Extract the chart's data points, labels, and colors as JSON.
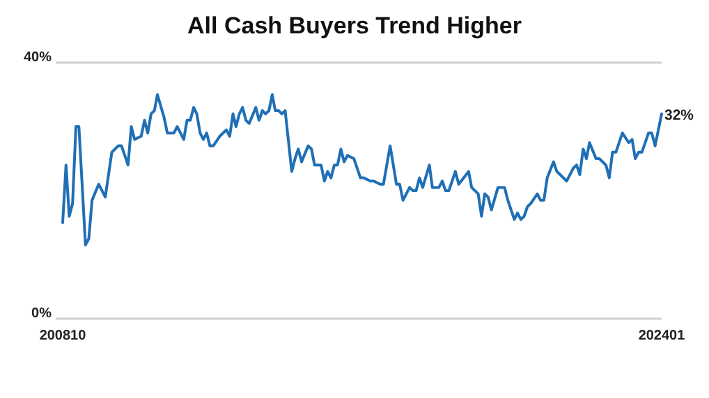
{
  "chart_data": {
    "type": "line",
    "title": "All Cash Buyers Trend Higher",
    "x": [
      "2008-10",
      "2008-11",
      "2008-12",
      "2009-01",
      "2009-02",
      "2009-03",
      "2009-05",
      "2009-06",
      "2009-07",
      "2009-09",
      "2009-11",
      "2010-01",
      "2010-03",
      "2010-04",
      "2010-06",
      "2010-07",
      "2010-08",
      "2010-10",
      "2010-11",
      "2010-12",
      "2011-01",
      "2011-02",
      "2011-03",
      "2011-05",
      "2011-06",
      "2011-08",
      "2011-09",
      "2011-11",
      "2011-12",
      "2012-01",
      "2012-02",
      "2012-03",
      "2012-04",
      "2012-05",
      "2012-06",
      "2012-07",
      "2012-08",
      "2012-10",
      "2012-12",
      "2013-01",
      "2013-02",
      "2013-03",
      "2013-04",
      "2013-05",
      "2013-06",
      "2013-07",
      "2013-09",
      "2013-10",
      "2013-11",
      "2013-12",
      "2014-01",
      "2014-02",
      "2014-03",
      "2014-04",
      "2014-05",
      "2014-06",
      "2014-08",
      "2014-09",
      "2014-10",
      "2014-11",
      "2015-01",
      "2015-02",
      "2015-03",
      "2015-05",
      "2015-06",
      "2015-07",
      "2015-08",
      "2015-09",
      "2015-10",
      "2015-11",
      "2015-12",
      "2016-01",
      "2016-03",
      "2016-05",
      "2016-06",
      "2016-08",
      "2016-09",
      "2016-11",
      "2016-12",
      "2017-02",
      "2017-04",
      "2017-05",
      "2017-06",
      "2017-08",
      "2017-09",
      "2017-10",
      "2017-11",
      "2017-12",
      "2018-02",
      "2018-03",
      "2018-05",
      "2018-06",
      "2018-07",
      "2018-08",
      "2018-10",
      "2018-11",
      "2019-02",
      "2019-03",
      "2019-05",
      "2019-06",
      "2019-07",
      "2019-08",
      "2019-09",
      "2019-11",
      "2020-01",
      "2020-02",
      "2020-04",
      "2020-05",
      "2020-06",
      "2020-07",
      "2020-08",
      "2020-09",
      "2020-11",
      "2020-12",
      "2021-01",
      "2021-02",
      "2021-04",
      "2021-05",
      "2021-06",
      "2021-08",
      "2021-10",
      "2021-11",
      "2021-12",
      "2022-01",
      "2022-02",
      "2022-03",
      "2022-05",
      "2022-06",
      "2022-08",
      "2022-09",
      "2022-10",
      "2022-11",
      "2023-01",
      "2023-03",
      "2023-04",
      "2023-05",
      "2023-06",
      "2023-07",
      "2023-09",
      "2023-10",
      "2023-11",
      "2024-01"
    ],
    "series": [
      {
        "color": "#1f6fb5",
        "values": [
          15,
          24,
          16,
          18,
          30,
          30,
          11.5,
          12.5,
          18.5,
          21,
          19,
          26,
          27,
          27,
          24,
          30,
          28,
          28.5,
          31,
          29,
          32,
          32.5,
          35,
          31.5,
          29,
          29,
          30,
          28,
          31,
          31,
          33,
          32,
          29,
          28,
          29,
          27,
          27,
          28.5,
          29.5,
          28.5,
          32,
          30,
          32,
          33,
          31,
          30.5,
          33,
          31,
          32.5,
          32,
          32.5,
          35,
          32.5,
          32.5,
          32,
          32.5,
          23,
          25,
          26.5,
          24.5,
          27,
          26.5,
          24,
          24,
          21.5,
          23,
          22,
          24,
          24,
          26.5,
          24.5,
          25.5,
          25,
          22,
          22,
          21.5,
          21.5,
          21,
          21,
          27,
          21,
          21,
          18.5,
          20.5,
          20,
          20,
          22,
          20.5,
          24,
          20.5,
          20.5,
          21.5,
          20,
          20,
          23,
          21,
          23,
          20.5,
          19.5,
          16,
          19.5,
          19,
          17,
          20.5,
          20.5,
          18.5,
          15.5,
          16.5,
          15.5,
          16,
          17.5,
          18,
          19.5,
          18.5,
          18.5,
          22,
          24.5,
          23,
          22.5,
          21.5,
          23.5,
          24,
          22.5,
          26.5,
          25,
          27.5,
          25,
          25,
          24,
          22,
          26,
          26,
          29,
          27.5,
          28,
          25,
          26,
          26,
          29,
          29,
          27,
          32
        ],
        "value_labels": [
          null,
          null,
          null,
          null,
          null,
          null,
          null,
          null,
          null,
          null,
          null,
          null,
          null,
          null,
          null,
          null,
          null,
          null,
          null,
          null,
          null,
          null,
          null,
          null,
          null,
          null,
          null,
          null,
          null,
          null,
          null,
          null,
          null,
          null,
          null,
          null,
          null,
          null,
          null,
          null,
          null,
          null,
          null,
          null,
          null,
          null,
          null,
          null,
          null,
          null,
          null,
          null,
          null,
          null,
          null,
          null,
          null,
          null,
          null,
          null,
          null,
          null,
          null,
          null,
          null,
          null,
          null,
          null,
          null,
          null,
          null,
          null,
          null,
          null,
          null,
          null,
          null,
          null,
          null,
          null,
          null,
          null,
          null,
          null,
          null,
          null,
          null,
          null,
          null,
          null,
          null,
          null,
          null,
          null,
          null,
          null,
          null,
          null,
          null,
          null,
          null,
          null,
          null,
          null,
          null,
          null,
          null,
          null,
          null,
          null,
          null,
          null,
          null,
          null,
          null,
          null,
          null,
          null,
          null,
          null,
          null,
          null,
          null,
          null,
          null,
          null,
          null,
          null,
          null,
          null,
          null,
          null,
          null,
          null,
          null,
          null,
          null,
          null,
          null,
          null,
          null,
          "32%"
        ]
      }
    ],
    "xlim": [
      "2008-10",
      "2024-01"
    ],
    "xticks": [
      {
        "value": "2008-10",
        "label": "200810"
      },
      {
        "value": "2024-01",
        "label": "202401"
      }
    ],
    "ylim": [
      0,
      40
    ],
    "yticks": [
      {
        "value": 0,
        "label": "0%"
      },
      {
        "value": 40,
        "label": "40%"
      }
    ],
    "marker": "none",
    "line_style": "solid"
  }
}
